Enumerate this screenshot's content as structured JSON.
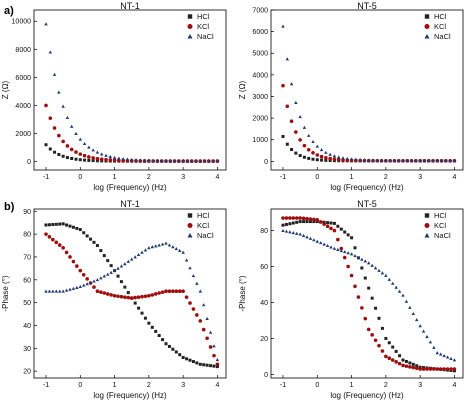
{
  "panel_labels": [
    "a)",
    "b)"
  ],
  "colors": {
    "HCl": "#222222",
    "KCl": "#a00d0d",
    "NaCl": "#1f3a73"
  },
  "chart_data": [
    {
      "type": "scatter",
      "title": "NT-1",
      "xlabel": "log (Frequency) (Hz)",
      "ylabel": "Z (Ω)",
      "xlim": [
        -1.35,
        4.25
      ],
      "ylim": [
        -600,
        10800
      ],
      "xticks": [
        -1,
        0,
        1,
        2,
        3,
        4
      ],
      "yticks": [
        0,
        2000,
        4000,
        6000,
        8000,
        10000
      ],
      "legend": "top-right",
      "grid": false,
      "series": [
        {
          "name": "HCl",
          "marker": "square",
          "y0": 1200,
          "k": 1.5,
          "tail": 25
        },
        {
          "name": "KCl",
          "marker": "circle",
          "y0": 4000,
          "k": 1.3,
          "tail": 35
        },
        {
          "name": "NaCl",
          "marker": "triangle",
          "y0": 9800,
          "k": 1.15,
          "tail": 45
        }
      ]
    },
    {
      "type": "scatter",
      "title": "NT-5",
      "xlabel": "log (Frequency) (Hz)",
      "ylabel": "Z (Ω)",
      "xlim": [
        -1.35,
        4.25
      ],
      "ylim": [
        -400,
        7000
      ],
      "xticks": [
        -1,
        0,
        1,
        2,
        3,
        4
      ],
      "yticks": [
        0,
        1000,
        2000,
        3000,
        4000,
        5000,
        6000,
        7000
      ],
      "legend": "top-right",
      "grid": false,
      "series": [
        {
          "name": "HCl",
          "marker": "square",
          "y0": 1150,
          "k": 1.9,
          "tail": 20
        },
        {
          "name": "KCl",
          "marker": "circle",
          "y0": 3500,
          "k": 1.6,
          "tail": 25
        },
        {
          "name": "NaCl",
          "marker": "triangle",
          "y0": 6250,
          "k": 1.4,
          "tail": 35
        }
      ]
    },
    {
      "type": "scatter",
      "title": "NT-1",
      "xlabel": "log (Frequency) (Hz)",
      "ylabel": "-Phase (°)",
      "xlim": [
        -1.35,
        4.25
      ],
      "ylim": [
        17,
        91
      ],
      "xticks": [
        -1,
        0,
        1,
        2,
        3,
        4
      ],
      "yticks": [
        20,
        30,
        40,
        50,
        60,
        70,
        80,
        90
      ],
      "legend": "top-right",
      "grid": false,
      "series": [
        {
          "name": "HCl",
          "marker": "square",
          "x": [
            -1,
            -0.5,
            0,
            0.5,
            1,
            1.5,
            2,
            2.5,
            3,
            3.5,
            4
          ],
          "y": [
            84,
            84.5,
            82,
            75,
            64,
            52,
            41,
            32,
            26,
            23,
            22
          ]
        },
        {
          "name": "KCl",
          "marker": "circle",
          "x": [
            -1,
            -0.5,
            0,
            0.5,
            1,
            1.5,
            2,
            2.5,
            3,
            3.5,
            4
          ],
          "y": [
            80,
            74,
            64,
            55,
            53,
            52,
            53,
            55,
            55,
            42,
            23
          ]
        },
        {
          "name": "NaCl",
          "marker": "triangle",
          "x": [
            -1,
            -0.5,
            0,
            0.5,
            1,
            1.5,
            2,
            2.5,
            3,
            3.5,
            4
          ],
          "y": [
            55,
            55,
            57,
            60,
            64,
            69,
            74,
            76,
            72,
            55,
            25
          ]
        }
      ]
    },
    {
      "type": "scatter",
      "title": "NT-5",
      "xlabel": "log (Frequency) (Hz)",
      "ylabel": "-Phase (°)",
      "xlim": [
        -1.35,
        4.25
      ],
      "ylim": [
        -2,
        92
      ],
      "xticks": [
        -1,
        0,
        1,
        2,
        3,
        4
      ],
      "yticks": [
        0,
        20,
        40,
        60,
        80
      ],
      "legend": "top-right",
      "grid": false,
      "series": [
        {
          "name": "HCl",
          "marker": "square",
          "x": [
            -1,
            -0.5,
            0,
            0.5,
            1,
            1.5,
            2,
            2.5,
            3,
            3.5,
            4
          ],
          "y": [
            83,
            85,
            85,
            84,
            76,
            48,
            20,
            8,
            4,
            3,
            2
          ]
        },
        {
          "name": "KCl",
          "marker": "circle",
          "x": [
            -1,
            -0.5,
            0,
            0.5,
            1,
            1.5,
            2,
            2.5,
            3,
            3.5,
            4
          ],
          "y": [
            87,
            87,
            86,
            80,
            55,
            25,
            10,
            5,
            3,
            3,
            3
          ]
        },
        {
          "name": "NaCl",
          "marker": "triangle",
          "x": [
            -1,
            -0.5,
            0,
            0.5,
            1,
            1.5,
            2,
            2.5,
            3,
            3.5,
            4
          ],
          "y": [
            80,
            78,
            74,
            70,
            67,
            62,
            55,
            44,
            27,
            12,
            8
          ]
        }
      ]
    }
  ]
}
